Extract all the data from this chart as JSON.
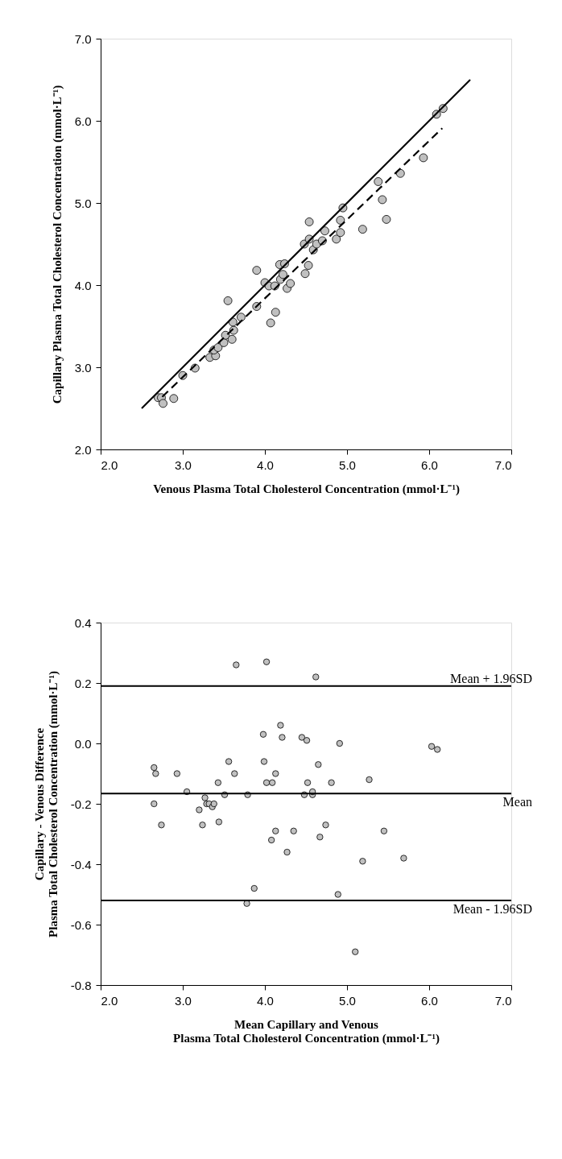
{
  "chart_data": [
    {
      "type": "scatter",
      "xlabel": "Venous Plasma Total Cholesterol Concentration (mmol·L⁻¹)",
      "ylabel": "Capillary Plasma Total Cholesterol Concentration (mmol·L⁻¹)",
      "marker": "circle",
      "grid": false,
      "xlim": [
        2.0,
        7.0
      ],
      "ylim": [
        2.0,
        7.0
      ],
      "xticks": [
        {
          "value": 2,
          "label": "2.0"
        },
        {
          "value": 3,
          "label": "3.0"
        },
        {
          "value": 4,
          "label": "4.0"
        },
        {
          "value": 5,
          "label": "5.0"
        },
        {
          "value": 6,
          "label": "6.0"
        },
        {
          "value": 7,
          "label": "7.0"
        }
      ],
      "yticks": [
        {
          "value": 2,
          "label": "2.0"
        },
        {
          "value": 3,
          "label": "3.0"
        },
        {
          "value": 4,
          "label": "4.0"
        },
        {
          "value": 5,
          "label": "5.0"
        },
        {
          "value": 6,
          "label": "6.0"
        },
        {
          "value": 7,
          "label": "7.0"
        }
      ],
      "series": [
        {
          "color": "#c0c0c0",
          "x": [
            2.7,
            2.74,
            2.76,
            2.89,
            3.0,
            3.15,
            3.33,
            3.4,
            3.38,
            3.43,
            3.5,
            3.52,
            3.6,
            3.62,
            3.61,
            3.55,
            3.71,
            3.9,
            3.9,
            4.0,
            4.05,
            4.12,
            4.07,
            4.13,
            4.19,
            4.22,
            4.18,
            4.24,
            4.27,
            4.31,
            4.48,
            4.49,
            4.53,
            4.54,
            4.54,
            4.59,
            4.63,
            4.7,
            4.73,
            4.87,
            4.92,
            4.92,
            4.95,
            5.19,
            5.38,
            5.43,
            5.48,
            5.65,
            5.93,
            6.09,
            6.17
          ],
          "values": [
            2.63,
            2.63,
            2.56,
            2.62,
            2.9,
            2.99,
            3.12,
            3.14,
            3.21,
            3.24,
            3.3,
            3.39,
            3.34,
            3.45,
            3.55,
            3.81,
            3.61,
            3.74,
            4.18,
            4.03,
            3.99,
            3.99,
            3.54,
            3.67,
            4.07,
            4.13,
            4.25,
            4.26,
            3.96,
            4.02,
            4.5,
            4.14,
            4.24,
            4.56,
            4.77,
            4.43,
            4.5,
            4.54,
            4.66,
            4.56,
            4.64,
            4.79,
            4.94,
            4.68,
            5.26,
            5.04,
            4.8,
            5.36,
            5.55,
            6.08,
            6.15
          ]
        },
        {
          "type": "line",
          "color": "#000000",
          "line_style": "solid",
          "marker": "none",
          "x": [
            2.5,
            6.5
          ],
          "values": [
            2.5,
            6.5
          ]
        },
        {
          "type": "line",
          "color": "#000000",
          "line_style": "dashed",
          "marker": "none",
          "x": [
            2.75,
            6.16
          ],
          "values": [
            2.64,
            5.91
          ]
        }
      ]
    },
    {
      "type": "scatter",
      "xlabel": "Mean Capillary and Venous\nPlasma Total Cholesterol Concentration (mmol·L⁻¹)",
      "ylabel": "Capillary - Venous Difference\nPlasma Total Cholesterol Concentration (mmol·L⁻¹)",
      "marker": "circle",
      "grid": false,
      "xlim": [
        2.0,
        7.0
      ],
      "ylim": [
        -0.8,
        0.4
      ],
      "xticks": [
        {
          "value": 2,
          "label": "2.0"
        },
        {
          "value": 3,
          "label": "3.0"
        },
        {
          "value": 4,
          "label": "4.0"
        },
        {
          "value": 5,
          "label": "5.0"
        },
        {
          "value": 6,
          "label": "6.0"
        },
        {
          "value": 7,
          "label": "7.0"
        }
      ],
      "yticks": [
        -0.8,
        -0.6,
        -0.4,
        -0.2,
        {
          "value": 0,
          "label": "0.0"
        },
        0.2,
        0.4
      ],
      "series": [
        {
          "color": "#c0c0c0",
          "x": [
            3.65,
            4.02,
            4.62,
            4.19,
            3.98,
            4.21,
            4.45,
            4.51,
            4.91,
            6.03,
            6.1,
            2.65,
            2.67,
            2.93,
            3.56,
            3.63,
            3.99,
            4.13,
            4.65,
            3.43,
            4.02,
            4.09,
            4.52,
            4.81,
            5.27,
            3.05,
            3.51,
            3.79,
            4.48,
            4.58,
            4.58,
            2.65,
            3.27,
            3.29,
            3.32,
            3.36,
            3.38,
            3.2,
            2.74,
            3.24,
            3.44,
            4.13,
            4.35,
            4.74,
            5.45,
            4.08,
            4.67,
            4.27,
            5.19,
            5.69,
            3.87,
            4.89,
            3.78,
            5.1
          ],
          "values": [
            0.26,
            0.27,
            0.22,
            0.06,
            0.03,
            0.02,
            0.02,
            0.01,
            0.0,
            -0.01,
            -0.02,
            -0.08,
            -0.1,
            -0.1,
            -0.06,
            -0.1,
            -0.06,
            -0.1,
            -0.07,
            -0.13,
            -0.13,
            -0.13,
            -0.13,
            -0.13,
            -0.12,
            -0.16,
            -0.17,
            -0.17,
            -0.17,
            -0.17,
            -0.16,
            -0.2,
            -0.18,
            -0.2,
            -0.2,
            -0.21,
            -0.2,
            -0.22,
            -0.27,
            -0.27,
            -0.26,
            -0.29,
            -0.29,
            -0.27,
            -0.29,
            -0.32,
            -0.31,
            -0.36,
            -0.39,
            -0.38,
            -0.48,
            -0.5,
            -0.53,
            -0.69
          ]
        }
      ],
      "ref_lines": [
        {
          "axis": "y",
          "value": 0.19,
          "label": "Mean + 1.96SD",
          "color": "#000000"
        },
        {
          "axis": "y",
          "value": -0.166,
          "label": "Mean",
          "color": "#000000"
        },
        {
          "axis": "y",
          "value": -0.52,
          "label": "Mean - 1.96SD",
          "color": "#000000"
        }
      ]
    }
  ]
}
